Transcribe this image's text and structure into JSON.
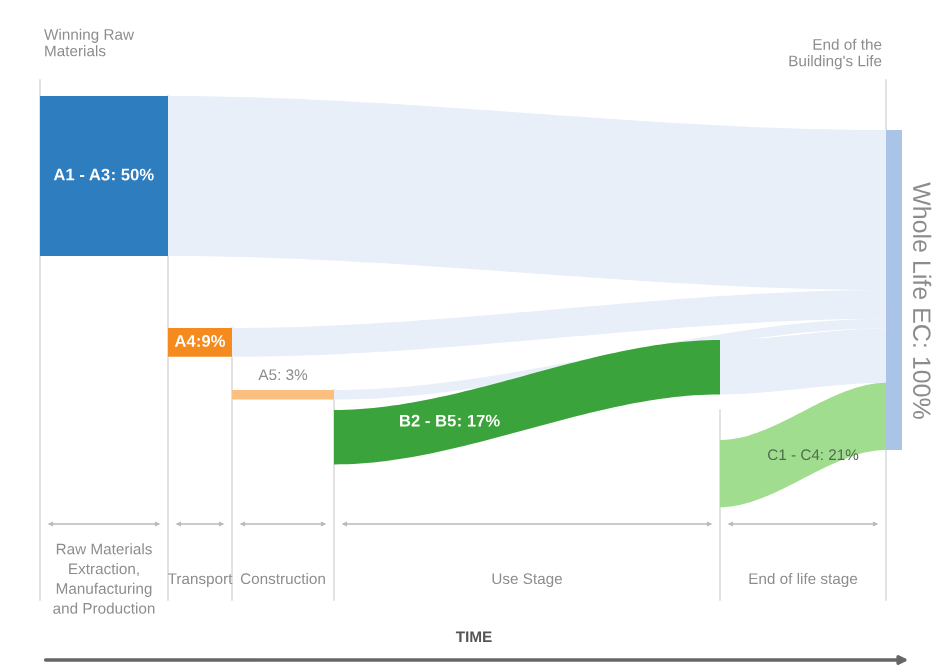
{
  "chart_data": {
    "type": "other",
    "categories": [
      "A1 - A3",
      "A4",
      "A5",
      "B2 - B5",
      "C1 - C4",
      "Whole Life EC"
    ],
    "values": [
      50,
      9,
      3,
      17,
      21,
      100
    ],
    "value_labels": [
      ": 50%",
      ":9%",
      ": 3%",
      ": 17%",
      ": 21%",
      ": 100%"
    ],
    "colors": [
      "#2e7dbf",
      "#f58a1f",
      "#fbbf80",
      "#3ba33b",
      "#a1dd8f",
      "#a9c4e6"
    ],
    "annotations": [
      "Winning Raw\nMaterials",
      "End of the\nBuilding's Life",
      "Raw Materials\nExtraction,\nManufacturing\nand Production",
      "Transport",
      "Construction",
      "Use Stage",
      "End of life stage",
      "TIME"
    ]
  }
}
